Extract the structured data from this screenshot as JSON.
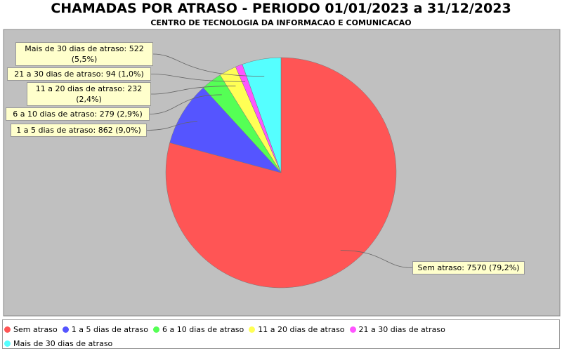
{
  "chart_data": {
    "type": "pie",
    "title": "CHAMADAS POR ATRASO - PERIODO 01/01/2023 a 31/12/2023",
    "subtitle": "CENTRO DE TECNOLOGIA DA INFORMACAO E COMUNICACAO",
    "categories": [
      "Sem atraso",
      "1 a 5 dias de atraso",
      "6 a 10 dias de atraso",
      "11 a 20 dias de atraso",
      "21 a 30 dias de atraso",
      "Mais de 30 dias de atraso"
    ],
    "values": [
      7570,
      862,
      279,
      232,
      94,
      522
    ],
    "value_labels": [
      "Sem atraso: 7570 (79,2%)",
      "1 a 5 dias de atraso: 862 (9,0%)",
      "6 a 10 dias de atraso: 279 (2,9%)",
      "11 a 20 dias de atraso: 232 (2,4%)",
      "21 a 30 dias de atraso: 94 (1,0%)",
      "Mais de 30 dias de atraso: 522 (5,5%)"
    ],
    "colors": [
      "#ff5555",
      "#5555ff",
      "#55ff55",
      "#ffff55",
      "#ff55ff",
      "#55ffff"
    ],
    "legend": "bottom"
  }
}
